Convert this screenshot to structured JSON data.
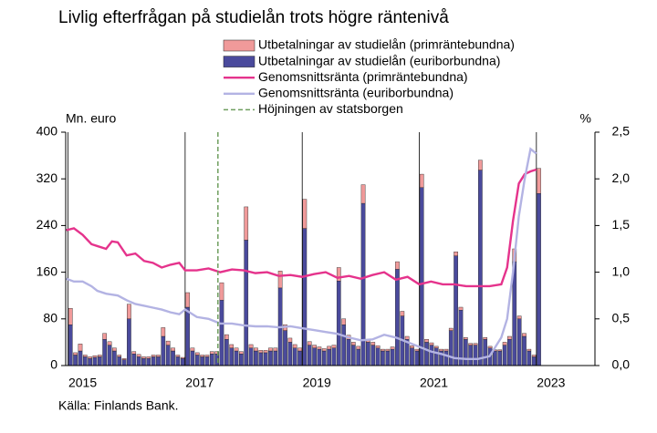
{
  "chart_data": {
    "type": "bar",
    "stacked": true,
    "title": "Livlig efterfrågan på studielån trots högre räntenivå",
    "y_label": "Mn. euro",
    "y2_label": "%",
    "source": "Källa: Finlands Bank.",
    "xlim": [
      2014.96,
      2024.0
    ],
    "xticks": [
      2015,
      2017,
      2019,
      2021,
      2023
    ],
    "ylim": [
      0,
      400
    ],
    "yticks": [
      0,
      80,
      160,
      240,
      320,
      400
    ],
    "y2lim": [
      0,
      2.5
    ],
    "y2ticks": [
      {
        "value": 0,
        "label": "0,0"
      },
      {
        "value": 0.5,
        "label": "0,5"
      },
      {
        "value": 1,
        "label": "1,0"
      },
      {
        "value": 1.5,
        "label": "1,5"
      },
      {
        "value": 2,
        "label": "2,0"
      },
      {
        "value": 2.5,
        "label": "2,5"
      }
    ],
    "x": [
      2015,
      2015.083,
      2015.167,
      2015.25,
      2015.333,
      2015.417,
      2015.5,
      2015.583,
      2015.667,
      2015.75,
      2015.833,
      2015.917,
      2016,
      2016.083,
      2016.167,
      2016.25,
      2016.333,
      2016.417,
      2016.5,
      2016.583,
      2016.667,
      2016.75,
      2016.833,
      2016.917,
      2017,
      2017.083,
      2017.167,
      2017.25,
      2017.333,
      2017.417,
      2017.5,
      2017.583,
      2017.667,
      2017.75,
      2017.833,
      2017.917,
      2018,
      2018.083,
      2018.167,
      2018.25,
      2018.333,
      2018.417,
      2018.5,
      2018.583,
      2018.667,
      2018.75,
      2018.833,
      2018.917,
      2019,
      2019.083,
      2019.167,
      2019.25,
      2019.333,
      2019.417,
      2019.5,
      2019.583,
      2019.667,
      2019.75,
      2019.833,
      2019.917,
      2020,
      2020.083,
      2020.167,
      2020.25,
      2020.333,
      2020.417,
      2020.5,
      2020.583,
      2020.667,
      2020.75,
      2020.833,
      2020.917,
      2021,
      2021.083,
      2021.167,
      2021.25,
      2021.333,
      2021.417,
      2021.5,
      2021.583,
      2021.667,
      2021.75,
      2021.833,
      2021.917,
      2022,
      2022.083,
      2022.167,
      2022.25,
      2022.333,
      2022.417,
      2022.5,
      2022.583,
      2022.667,
      2022.75,
      2022.833,
      2022.917,
      2023
    ],
    "series": [
      {
        "name": "Utbetalningar av studielån (primräntebundna)",
        "type": "bar",
        "color": "#f09a9a",
        "values": [
          28,
          4,
          12,
          3,
          3,
          3,
          3,
          10,
          6,
          5,
          3,
          2,
          25,
          4,
          4,
          3,
          3,
          3,
          3,
          15,
          7,
          5,
          3,
          2,
          25,
          5,
          4,
          3,
          3,
          4,
          4,
          30,
          8,
          6,
          5,
          4,
          57,
          6,
          5,
          4,
          4,
          5,
          5,
          29,
          10,
          7,
          6,
          5,
          50,
          6,
          5,
          4,
          4,
          5,
          5,
          23,
          10,
          7,
          5,
          5,
          32,
          5,
          5,
          4,
          3,
          3,
          4,
          13,
          8,
          5,
          4,
          3,
          23,
          5,
          4,
          3,
          3,
          3,
          4,
          7,
          5,
          3,
          3,
          3,
          17,
          3,
          3,
          2,
          2,
          5,
          5,
          22,
          5,
          5,
          3,
          3,
          43
        ]
      },
      {
        "name": "Utbetalningar av studielån (euriborbundna)",
        "type": "bar",
        "color": "#4a4a9c",
        "values": [
          70,
          18,
          25,
          15,
          12,
          14,
          15,
          45,
          35,
          25,
          15,
          10,
          80,
          20,
          15,
          12,
          12,
          15,
          15,
          50,
          35,
          25,
          15,
          12,
          100,
          25,
          18,
          15,
          15,
          20,
          20,
          112,
          45,
          30,
          25,
          20,
          215,
          30,
          25,
          22,
          22,
          25,
          25,
          133,
          60,
          40,
          30,
          25,
          235,
          35,
          30,
          28,
          25,
          28,
          30,
          145,
          70,
          45,
          35,
          28,
          278,
          40,
          35,
          30,
          25,
          25,
          28,
          165,
          85,
          45,
          30,
          25,
          305,
          40,
          35,
          30,
          25,
          25,
          60,
          188,
          95,
          45,
          35,
          35,
          335,
          45,
          30,
          25,
          25,
          35,
          45,
          178,
          80,
          50,
          25,
          15,
          295
        ]
      },
      {
        "name": "Genomsnittsränta (primräntebundna)",
        "type": "line",
        "axis": "y2",
        "color": "#e5338c",
        "x": [
          2014.97,
          2015.1,
          2015.25,
          2015.4,
          2015.5,
          2015.65,
          2015.75,
          2015.85,
          2016.0,
          2016.15,
          2016.3,
          2016.45,
          2016.6,
          2016.75,
          2016.9,
          2017.0,
          2017.2,
          2017.4,
          2017.6,
          2017.8,
          2018.0,
          2018.2,
          2018.4,
          2018.6,
          2018.8,
          2019.0,
          2019.2,
          2019.4,
          2019.6,
          2019.8,
          2020.0,
          2020.2,
          2020.4,
          2020.6,
          2020.8,
          2021.0,
          2021.2,
          2021.4,
          2021.6,
          2021.8,
          2022.0,
          2022.2,
          2022.4,
          2022.5,
          2022.6,
          2022.7,
          2022.8,
          2022.9,
          2023.0
        ],
        "values": [
          1.45,
          1.47,
          1.4,
          1.3,
          1.28,
          1.25,
          1.33,
          1.32,
          1.18,
          1.2,
          1.12,
          1.1,
          1.05,
          1.08,
          1.1,
          1.02,
          1.02,
          1.04,
          1.0,
          1.03,
          1.02,
          0.99,
          1.0,
          0.96,
          0.97,
          0.95,
          0.98,
          1.0,
          0.94,
          0.96,
          0.93,
          0.97,
          1.0,
          0.92,
          0.95,
          0.87,
          0.9,
          0.87,
          0.87,
          0.85,
          0.85,
          0.85,
          0.87,
          1.05,
          1.55,
          1.95,
          2.05,
          2.08,
          2.1
        ]
      },
      {
        "name": "Genomsnittsränta (euriborbundna)",
        "type": "line",
        "axis": "y2",
        "color": "#b3b3e3",
        "x": [
          2014.97,
          2015.1,
          2015.25,
          2015.4,
          2015.5,
          2015.65,
          2015.75,
          2015.85,
          2016.0,
          2016.15,
          2016.3,
          2016.45,
          2016.6,
          2016.75,
          2016.9,
          2017.0,
          2017.2,
          2017.4,
          2017.6,
          2017.8,
          2018.0,
          2018.2,
          2018.4,
          2018.6,
          2018.8,
          2019.0,
          2019.2,
          2019.4,
          2019.6,
          2019.8,
          2020.0,
          2020.2,
          2020.4,
          2020.6,
          2020.8,
          2021.0,
          2021.2,
          2021.4,
          2021.6,
          2021.8,
          2022.0,
          2022.2,
          2022.4,
          2022.5,
          2022.6,
          2022.7,
          2022.8,
          2022.9,
          2023.0
        ],
        "values": [
          0.93,
          0.9,
          0.9,
          0.85,
          0.8,
          0.77,
          0.76,
          0.75,
          0.7,
          0.66,
          0.64,
          0.62,
          0.6,
          0.57,
          0.55,
          0.6,
          0.52,
          0.5,
          0.45,
          0.45,
          0.43,
          0.42,
          0.42,
          0.41,
          0.42,
          0.4,
          0.38,
          0.36,
          0.34,
          0.3,
          0.27,
          0.28,
          0.33,
          0.3,
          0.25,
          0.2,
          0.15,
          0.12,
          0.08,
          0.07,
          0.07,
          0.1,
          0.3,
          0.5,
          1.0,
          1.6,
          2.0,
          2.32,
          2.27
        ]
      },
      {
        "name": "Höjningen av statsborgen",
        "type": "vline",
        "color": "#6f9f5f",
        "x": 2017.56
      }
    ]
  }
}
